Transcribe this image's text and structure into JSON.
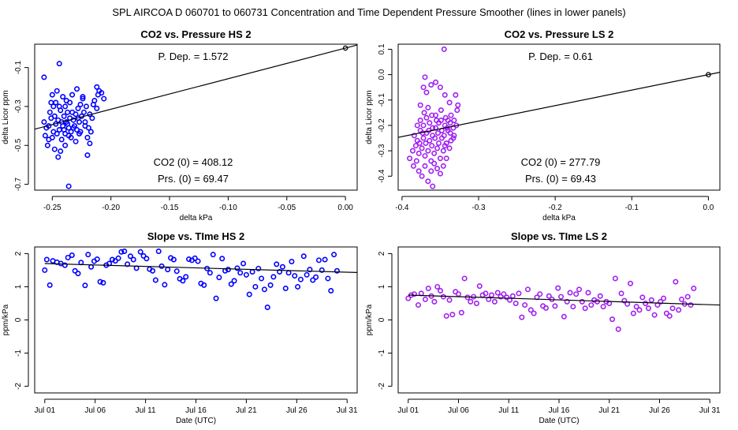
{
  "page_title": "SPL   AIRCOA D   060701 to 060731   Concentration and Time Dependent Pressure Smoother (lines in lower panels)",
  "colors": {
    "hs": "#0000ff",
    "ls": "#a020f0",
    "line": "#000000"
  },
  "chart_data": [
    {
      "id": "co2-pressure-hs",
      "type": "scatter",
      "title": "CO2 vs. Pressure HS 2",
      "xlabel": "delta kPa",
      "ylabel": "delta Licor ppm",
      "xlim": [
        -0.265,
        0.01
      ],
      "ylim": [
        -0.73,
        0.02
      ],
      "xticks": [
        -0.25,
        -0.2,
        -0.15,
        -0.1,
        -0.05,
        0.0
      ],
      "xtick_labels": [
        "-0.25",
        "-0.20",
        "-0.15",
        "-0.10",
        "-0.05",
        "0.00"
      ],
      "yticks": [
        -0.7,
        -0.5,
        -0.3,
        -0.1
      ],
      "ytick_labels": [
        "-0.7",
        "-0.5",
        "-0.3",
        "-0.1"
      ],
      "annotations": {
        "p_dep": "P. Dep. =  1.572",
        "co2_0": "CO2 (0) =  408.12",
        "prs_0": "Prs. (0) =  69.47"
      },
      "fit_line": {
        "x": [
          -0.265,
          0.01
        ],
        "y": [
          -0.4166,
          0.0157
        ]
      },
      "origin_point": {
        "x": 0.0,
        "y": 0.0
      },
      "seed": 11,
      "points_x_range": [
        -0.258,
        -0.205
      ],
      "points_y_center": -0.39,
      "points_y_spread": 0.13,
      "points": [
        [
          -0.244,
          -0.08
        ],
        [
          -0.257,
          -0.15
        ],
        [
          -0.236,
          -0.71
        ],
        [
          -0.245,
          -0.56
        ],
        [
          -0.212,
          -0.2
        ],
        [
          -0.21,
          -0.22
        ],
        [
          -0.256,
          -0.45
        ],
        [
          -0.254,
          -0.5
        ],
        [
          -0.25,
          -0.46
        ],
        [
          -0.248,
          -0.52
        ],
        [
          -0.246,
          -0.44
        ],
        [
          -0.242,
          -0.47
        ],
        [
          -0.252,
          -0.33
        ],
        [
          -0.251,
          -0.36
        ],
        [
          -0.249,
          -0.3
        ],
        [
          -0.247,
          -0.28
        ],
        [
          -0.243,
          -0.32
        ],
        [
          -0.24,
          -0.35
        ],
        [
          -0.238,
          -0.38
        ],
        [
          -0.236,
          -0.41
        ],
        [
          -0.234,
          -0.43
        ],
        [
          -0.232,
          -0.37
        ],
        [
          -0.23,
          -0.34
        ],
        [
          -0.228,
          -0.31
        ],
        [
          -0.226,
          -0.29
        ],
        [
          -0.224,
          -0.26
        ],
        [
          -0.222,
          -0.4
        ],
        [
          -0.22,
          -0.46
        ],
        [
          -0.218,
          -0.49
        ],
        [
          -0.216,
          -0.36
        ],
        [
          -0.214,
          -0.27
        ],
        [
          -0.212,
          -0.31
        ],
        [
          -0.208,
          -0.23
        ],
        [
          -0.206,
          -0.26
        ],
        [
          -0.253,
          -0.4
        ],
        [
          -0.247,
          -0.39
        ],
        [
          -0.244,
          -0.42
        ],
        [
          -0.241,
          -0.4
        ],
        [
          -0.239,
          -0.44
        ],
        [
          -0.237,
          -0.39
        ],
        [
          -0.235,
          -0.36
        ],
        [
          -0.233,
          -0.33
        ],
        [
          -0.231,
          -0.4
        ],
        [
          -0.229,
          -0.42
        ],
        [
          -0.227,
          -0.38
        ],
        [
          -0.225,
          -0.35
        ],
        [
          -0.223,
          -0.33
        ],
        [
          -0.221,
          -0.3
        ],
        [
          -0.219,
          -0.41
        ],
        [
          -0.217,
          -0.43
        ],
        [
          -0.25,
          -0.24
        ],
        [
          -0.246,
          -0.22
        ],
        [
          -0.241,
          -0.25
        ],
        [
          -0.238,
          -0.27
        ],
        [
          -0.233,
          -0.24
        ],
        [
          -0.229,
          -0.21
        ],
        [
          -0.224,
          -0.25
        ],
        [
          -0.22,
          -0.55
        ],
        [
          -0.243,
          -0.53
        ],
        [
          -0.239,
          -0.5
        ],
        [
          -0.255,
          -0.41
        ],
        [
          -0.249,
          -0.43
        ],
        [
          -0.245,
          -0.37
        ],
        [
          -0.24,
          -0.42
        ],
        [
          -0.236,
          -0.45
        ],
        [
          -0.232,
          -0.41
        ],
        [
          -0.228,
          -0.36
        ],
        [
          -0.226,
          -0.43
        ],
        [
          -0.222,
          -0.38
        ],
        [
          -0.218,
          -0.34
        ],
        [
          -0.215,
          -0.29
        ],
        [
          -0.211,
          -0.24
        ],
        [
          -0.257,
          -0.38
        ],
        [
          -0.251,
          -0.28
        ],
        [
          -0.244,
          -0.3
        ],
        [
          -0.237,
          -0.33
        ],
        [
          -0.234,
          -0.46
        ],
        [
          -0.23,
          -0.48
        ],
        [
          -0.242,
          -0.38
        ],
        [
          -0.248,
          -0.35
        ],
        [
          -0.253,
          -0.47
        ],
        [
          -0.239,
          -0.3
        ],
        [
          -0.235,
          -0.28
        ],
        [
          -0.227,
          -0.44
        ]
      ]
    },
    {
      "id": "co2-pressure-ls",
      "type": "scatter",
      "title": "CO2 vs. Pressure LS 2",
      "xlabel": "delta kPa",
      "ylabel": "delta Licor ppm",
      "xlim": [
        -0.405,
        0.015
      ],
      "ylim": [
        -0.455,
        0.12
      ],
      "xticks": [
        -0.4,
        -0.3,
        -0.2,
        -0.1,
        0.0
      ],
      "xtick_labels": [
        "-0.4",
        "-0.3",
        "-0.2",
        "-0.1",
        "0.0"
      ],
      "yticks": [
        -0.4,
        -0.3,
        -0.2,
        -0.1,
        0.0,
        0.1
      ],
      "ytick_labels": [
        "-0.4",
        "-0.3",
        "-0.2",
        "-0.1",
        "0.0",
        "0.1"
      ],
      "annotations": {
        "p_dep": "P. Dep. =  0.61",
        "co2_0": "CO2 (0) =  277.79",
        "prs_0": "Prs. (0) =  69.43"
      },
      "fit_line": {
        "x": [
          -0.405,
          0.015
        ],
        "y": [
          -0.2471,
          0.0092
        ]
      },
      "origin_point": {
        "x": 0.0,
        "y": 0.0
      },
      "points": [
        [
          -0.345,
          0.1
        ],
        [
          -0.37,
          -0.01
        ],
        [
          -0.36,
          -0.44
        ],
        [
          -0.39,
          -0.33
        ],
        [
          -0.385,
          -0.36
        ],
        [
          -0.33,
          -0.08
        ],
        [
          -0.328,
          -0.14
        ],
        [
          -0.372,
          -0.05
        ],
        [
          -0.368,
          -0.07
        ],
        [
          -0.362,
          -0.04
        ],
        [
          -0.356,
          -0.03
        ],
        [
          -0.35,
          -0.05
        ],
        [
          -0.344,
          -0.08
        ],
        [
          -0.338,
          -0.11
        ],
        [
          -0.376,
          -0.12
        ],
        [
          -0.371,
          -0.15
        ],
        [
          -0.366,
          -0.13
        ],
        [
          -0.361,
          -0.16
        ],
        [
          -0.355,
          -0.18
        ],
        [
          -0.349,
          -0.14
        ],
        [
          -0.343,
          -0.17
        ],
        [
          -0.337,
          -0.19
        ],
        [
          -0.333,
          -0.21
        ],
        [
          -0.38,
          -0.2
        ],
        [
          -0.376,
          -0.22
        ],
        [
          -0.372,
          -0.25
        ],
        [
          -0.368,
          -0.23
        ],
        [
          -0.364,
          -0.26
        ],
        [
          -0.36,
          -0.24
        ],
        [
          -0.356,
          -0.21
        ],
        [
          -0.352,
          -0.27
        ],
        [
          -0.348,
          -0.25
        ],
        [
          -0.344,
          -0.28
        ],
        [
          -0.34,
          -0.22
        ],
        [
          -0.336,
          -0.26
        ],
        [
          -0.332,
          -0.24
        ],
        [
          -0.382,
          -0.28
        ],
        [
          -0.378,
          -0.31
        ],
        [
          -0.374,
          -0.29
        ],
        [
          -0.37,
          -0.32
        ],
        [
          -0.366,
          -0.3
        ],
        [
          -0.362,
          -0.34
        ],
        [
          -0.358,
          -0.31
        ],
        [
          -0.354,
          -0.29
        ],
        [
          -0.35,
          -0.33
        ],
        [
          -0.346,
          -0.3
        ],
        [
          -0.342,
          -0.27
        ],
        [
          -0.338,
          -0.29
        ],
        [
          -0.384,
          -0.24
        ],
        [
          -0.38,
          -0.26
        ],
        [
          -0.376,
          -0.18
        ],
        [
          -0.372,
          -0.2
        ],
        [
          -0.368,
          -0.17
        ],
        [
          -0.364,
          -0.19
        ],
        [
          -0.36,
          -0.21
        ],
        [
          -0.356,
          -0.16
        ],
        [
          -0.352,
          -0.19
        ],
        [
          -0.348,
          -0.22
        ],
        [
          -0.344,
          -0.2
        ],
        [
          -0.34,
          -0.18
        ],
        [
          -0.336,
          -0.16
        ],
        [
          -0.332,
          -0.18
        ],
        [
          -0.378,
          -0.38
        ],
        [
          -0.374,
          -0.4
        ],
        [
          -0.37,
          -0.36
        ],
        [
          -0.366,
          -0.42
        ],
        [
          -0.362,
          -0.38
        ],
        [
          -0.358,
          -0.35
        ],
        [
          -0.354,
          -0.37
        ],
        [
          -0.35,
          -0.39
        ],
        [
          -0.346,
          -0.36
        ],
        [
          -0.342,
          -0.33
        ],
        [
          -0.386,
          -0.3
        ],
        [
          -0.381,
          -0.34
        ],
        [
          -0.377,
          -0.27
        ],
        [
          -0.373,
          -0.23
        ],
        [
          -0.369,
          -0.27
        ],
        [
          -0.365,
          -0.22
        ],
        [
          -0.361,
          -0.28
        ],
        [
          -0.357,
          -0.25
        ],
        [
          -0.353,
          -0.23
        ],
        [
          -0.349,
          -0.18
        ],
        [
          -0.345,
          -0.24
        ],
        [
          -0.341,
          -0.21
        ],
        [
          -0.337,
          -0.23
        ],
        [
          -0.333,
          -0.25
        ],
        [
          -0.329,
          -0.2
        ],
        [
          -0.327,
          -0.12
        ]
      ]
    },
    {
      "id": "slope-time-hs",
      "type": "scatter",
      "title": "Slope vs. TIme HS 2",
      "xlabel": "Date (UTC)",
      "ylabel": "ppm/kPa",
      "xlim": [
        0,
        32
      ],
      "ylim": [
        -2.2,
        2.2
      ],
      "xticks": [
        1,
        6,
        11,
        16,
        21,
        26,
        31
      ],
      "xtick_labels": [
        "Jul 01",
        "Jul 06",
        "Jul 11",
        "Jul 16",
        "Jul 21",
        "Jul 26",
        "Jul 31"
      ],
      "yticks": [
        -2,
        -1,
        0,
        1,
        2
      ],
      "ytick_labels": [
        "-2",
        "-1",
        "0",
        "1",
        "2"
      ],
      "fit_line": {
        "x": [
          1,
          32
        ],
        "y": [
          1.7,
          1.43
        ]
      },
      "values": [
        1.5,
        1.82,
        1.05,
        1.78,
        1.74,
        1.7,
        1.65,
        1.88,
        1.95,
        1.48,
        1.4,
        1.73,
        1.04,
        1.97,
        1.6,
        1.77,
        1.83,
        1.15,
        1.12,
        1.65,
        1.7,
        1.82,
        1.78,
        1.86,
        2.05,
        2.07,
        1.68,
        1.92,
        1.82,
        1.56,
        2.05,
        1.93,
        1.85,
        1.53,
        1.48,
        1.2,
        2.07,
        1.62,
        1.06,
        1.52,
        1.87,
        1.82,
        1.47,
        1.24,
        1.18,
        1.3,
        1.83,
        1.8,
        1.86,
        1.77,
        1.1,
        1.05,
        1.55,
        1.42,
        1.97,
        0.65,
        1.28,
        1.85,
        1.48,
        1.52,
        1.08,
        1.18,
        1.56,
        1.42,
        1.7,
        1.36,
        0.77,
        1.45,
        1.0,
        1.55,
        1.25,
        0.92,
        0.38,
        1.05,
        1.3,
        1.68,
        1.45,
        1.6,
        0.95,
        1.42,
        1.76,
        1.33,
        1.0,
        1.22,
        1.92,
        1.36,
        1.52,
        1.2,
        1.29,
        1.8,
        1.5,
        1.82,
        1.25,
        0.88,
        1.97,
        1.48
      ],
      "times": [
        1.0,
        1.2,
        1.5,
        1.8,
        2.2,
        2.6,
        3.0,
        3.3,
        3.7,
        4.0,
        4.3,
        4.6,
        5.0,
        5.3,
        5.6,
        5.9,
        6.2,
        6.5,
        6.8,
        7.1,
        7.4,
        7.7,
        8.0,
        8.3,
        8.6,
        8.9,
        9.2,
        9.5,
        9.8,
        10.1,
        10.5,
        10.8,
        11.1,
        11.4,
        11.7,
        12.0,
        12.3,
        12.6,
        12.9,
        13.2,
        13.5,
        13.8,
        14.1,
        14.4,
        14.7,
        15.0,
        15.3,
        15.6,
        15.9,
        16.2,
        16.5,
        16.8,
        17.1,
        17.4,
        17.7,
        18.0,
        18.3,
        18.6,
        18.9,
        19.2,
        19.5,
        19.8,
        20.1,
        20.4,
        20.7,
        21.0,
        21.3,
        21.6,
        21.9,
        22.2,
        22.5,
        22.8,
        23.1,
        23.4,
        23.7,
        24.0,
        24.3,
        24.6,
        24.9,
        25.2,
        25.5,
        25.8,
        26.1,
        26.4,
        26.7,
        27.0,
        27.3,
        27.6,
        27.9,
        28.2,
        28.5,
        28.8,
        29.1,
        29.4,
        29.7,
        30.0
      ]
    },
    {
      "id": "slope-time-ls",
      "type": "scatter",
      "title": "Slope vs. TIme LS 2",
      "xlabel": "Date (UTC)",
      "ylabel": "ppm/kPa",
      "xlim": [
        0,
        32
      ],
      "ylim": [
        -2.2,
        2.2
      ],
      "xticks": [
        1,
        6,
        11,
        16,
        21,
        26,
        31
      ],
      "xtick_labels": [
        "Jul 01",
        "Jul 06",
        "Jul 11",
        "Jul 16",
        "Jul 21",
        "Jul 26",
        "Jul 31"
      ],
      "yticks": [
        -2,
        -1,
        0,
        1,
        2
      ],
      "ytick_labels": [
        "-2",
        "-1",
        "0",
        "1",
        "2"
      ],
      "fit_line": {
        "x": [
          1,
          32
        ],
        "y": [
          0.75,
          0.45
        ]
      },
      "values": [
        0.65,
        0.75,
        0.78,
        0.45,
        0.8,
        0.62,
        0.95,
        0.72,
        0.55,
        1.0,
        0.88,
        0.7,
        0.12,
        0.6,
        0.16,
        0.85,
        0.78,
        0.22,
        1.25,
        0.68,
        0.55,
        0.7,
        0.5,
        1.02,
        0.75,
        0.8,
        0.62,
        0.75,
        0.55,
        0.82,
        0.7,
        0.78,
        0.68,
        0.6,
        0.72,
        0.5,
        0.8,
        0.08,
        0.45,
        0.92,
        0.3,
        0.2,
        0.68,
        0.78,
        0.42,
        0.36,
        0.72,
        0.62,
        0.42,
        0.96,
        0.7,
        0.1,
        0.55,
        0.82,
        0.4,
        0.78,
        0.92,
        0.55,
        0.35,
        0.82,
        0.45,
        0.6,
        0.55,
        0.72,
        0.4,
        0.55,
        0.5,
        0.02,
        1.25,
        -0.28,
        0.8,
        0.58,
        0.48,
        1.1,
        0.2,
        0.4,
        0.3,
        0.68,
        0.5,
        0.35,
        0.6,
        0.15,
        0.45,
        0.55,
        0.65,
        0.2,
        0.12,
        0.35,
        1.15,
        0.3,
        0.62,
        0.48,
        0.7,
        0.45,
        0.95
      ],
      "times": [
        1.0,
        1.3,
        1.6,
        2.0,
        2.3,
        2.7,
        3.0,
        3.3,
        3.6,
        3.9,
        4.2,
        4.5,
        4.8,
        5.1,
        5.4,
        5.7,
        6.0,
        6.3,
        6.6,
        6.9,
        7.2,
        7.5,
        7.8,
        8.1,
        8.4,
        8.7,
        9.0,
        9.3,
        9.6,
        9.9,
        10.2,
        10.5,
        10.8,
        11.1,
        11.4,
        11.7,
        12.0,
        12.3,
        12.6,
        12.9,
        13.2,
        13.5,
        13.8,
        14.1,
        14.4,
        14.7,
        15.0,
        15.3,
        15.6,
        15.9,
        16.2,
        16.5,
        16.8,
        17.1,
        17.4,
        17.7,
        18.0,
        18.3,
        18.6,
        18.9,
        19.2,
        19.5,
        19.8,
        20.1,
        20.4,
        20.7,
        21.0,
        21.3,
        21.6,
        21.9,
        22.2,
        22.5,
        22.8,
        23.1,
        23.4,
        23.7,
        24.0,
        24.3,
        24.6,
        24.9,
        25.2,
        25.5,
        25.8,
        26.1,
        26.4,
        26.7,
        27.0,
        27.3,
        27.6,
        27.9,
        28.2,
        28.5,
        28.8,
        29.1,
        29.4
      ]
    }
  ]
}
